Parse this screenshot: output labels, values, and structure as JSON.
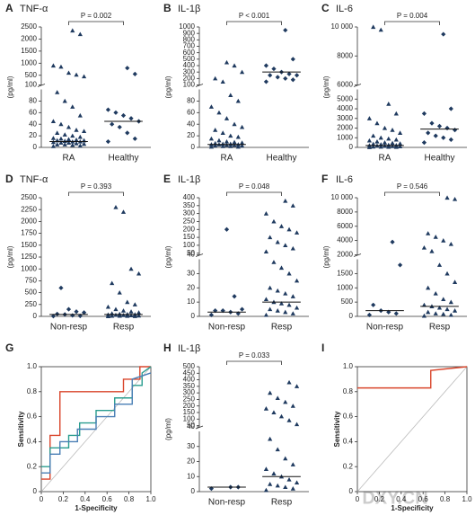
{
  "watermark": "DXY.CN",
  "chart_data": [
    {
      "type": "dotplot",
      "label": "A",
      "title": "TNF-α",
      "ylabel": "(pg/ml)",
      "annotation": "P = 0.002",
      "categories": [
        "RA",
        "Healthy"
      ],
      "markers": [
        "triangle",
        "diamond"
      ],
      "color": "#1f3a5f",
      "groups": [
        [
          2,
          3,
          4,
          5,
          5,
          6,
          7,
          8,
          8,
          9,
          10,
          10,
          11,
          12,
          12,
          13,
          14,
          15,
          16,
          18,
          20,
          22,
          25,
          28,
          30,
          35,
          40,
          45,
          55,
          70,
          80,
          95,
          450,
          520,
          600,
          850,
          900,
          2200,
          2350
        ],
        [
          10,
          15,
          25,
          35,
          40,
          45,
          50,
          55,
          60,
          65,
          550,
          800
        ]
      ],
      "medians": [
        10,
        45
      ],
      "ysegments": [
        {
          "ylim": [
            0,
            100
          ],
          "yticks": [
            0,
            20,
            40,
            60,
            80,
            100
          ]
        },
        {
          "ylim": [
            100,
            2500
          ],
          "yticks": [
            500,
            1000,
            1500,
            2000,
            2500
          ]
        }
      ]
    },
    {
      "type": "dotplot",
      "label": "B",
      "title": "IL-1β",
      "ylabel": "(pg/ml)",
      "annotation": "P < 0.001",
      "categories": [
        "RA",
        "Healthy"
      ],
      "markers": [
        "triangle",
        "diamond"
      ],
      "color": "#1f3a5f",
      "groups": [
        [
          1,
          1,
          2,
          2,
          3,
          3,
          4,
          4,
          5,
          5,
          5,
          6,
          6,
          7,
          8,
          9,
          10,
          12,
          15,
          18,
          20,
          25,
          30,
          35,
          40,
          50,
          60,
          70,
          80,
          90,
          150,
          200,
          300,
          400,
          450
        ],
        [
          150,
          180,
          200,
          220,
          250,
          250,
          270,
          300,
          350,
          400,
          500,
          950
        ]
      ],
      "medians": [
        5,
        300
      ],
      "ysegments": [
        {
          "ylim": [
            0,
            100
          ],
          "yticks": [
            0,
            20,
            40,
            60,
            80,
            100
          ]
        },
        {
          "ylim": [
            100,
            1000
          ],
          "yticks": [
            200,
            300,
            400,
            500,
            600,
            700,
            800,
            900,
            1000
          ]
        }
      ]
    },
    {
      "type": "dotplot",
      "label": "C",
      "title": "IL-6",
      "ylabel": "(pg/ml)",
      "annotation": "P = 0.004",
      "categories": [
        "RA",
        "Healthy"
      ],
      "markers": [
        "triangle",
        "diamond"
      ],
      "color": "#1f3a5f",
      "groups": [
        [
          20,
          40,
          50,
          60,
          80,
          100,
          120,
          150,
          180,
          200,
          220,
          250,
          300,
          350,
          400,
          450,
          500,
          600,
          700,
          800,
          900,
          1000,
          1200,
          1500,
          1800,
          2000,
          2500,
          3000,
          3500,
          4500,
          9800,
          10000
        ],
        [
          500,
          800,
          1000,
          1200,
          1500,
          1800,
          2000,
          2200,
          2500,
          3500,
          4000,
          9500
        ]
      ],
      "medians": [
        200,
        1900
      ],
      "ysegments": [
        {
          "ylim": [
            0,
            6000
          ],
          "yticks": [
            0,
            1000,
            2000,
            3000,
            4000,
            5000,
            6000
          ]
        },
        {
          "ylim": [
            6000,
            10000
          ],
          "yticks": [
            8000,
            {
              "value": 10000,
              "label": "10 000"
            }
          ]
        }
      ]
    },
    {
      "type": "dotplot",
      "label": "D",
      "title": "TNF-α",
      "ylabel": "(pg/ml)",
      "annotation": "P = 0.393",
      "categories": [
        "Non-resp",
        "Resp"
      ],
      "markers": [
        "diamond",
        "triangle"
      ],
      "color": "#1f3a5f",
      "groups": [
        [
          5,
          10,
          20,
          40,
          50,
          80,
          100,
          150,
          600
        ],
        [
          2,
          5,
          8,
          10,
          12,
          15,
          20,
          25,
          30,
          35,
          40,
          45,
          50,
          60,
          80,
          100,
          120,
          150,
          200,
          250,
          300,
          500,
          700,
          900,
          1000,
          2200,
          2300
        ]
      ],
      "medians": [
        40,
        40
      ],
      "ysegments": [
        {
          "ylim": [
            0,
            2500
          ],
          "yticks": [
            0,
            250,
            500,
            750,
            1000,
            1250,
            1500,
            1750,
            2000,
            2250,
            2500
          ]
        }
      ]
    },
    {
      "type": "dotplot",
      "label": "E",
      "title": "IL-1β",
      "ylabel": "(pg/ml)",
      "annotation": "P = 0.048",
      "categories": [
        "Non-resp",
        "Resp"
      ],
      "markers": [
        "diamond",
        "triangle"
      ],
      "color": "#1f3a5f",
      "groups": [
        [
          1,
          2,
          3,
          4,
          4,
          5,
          14,
          200
        ],
        [
          1,
          2,
          3,
          4,
          5,
          6,
          8,
          9,
          10,
          12,
          14,
          16,
          18,
          20,
          25,
          30,
          34,
          38,
          60,
          80,
          100,
          120,
          150,
          180,
          200,
          220,
          250,
          300,
          350,
          380
        ]
      ],
      "medians": [
        3,
        10
      ],
      "ysegments": [
        {
          "ylim": [
            0,
            40
          ],
          "yticks": [
            0,
            10,
            20,
            30,
            40
          ]
        },
        {
          "ylim": [
            40,
            400
          ],
          "yticks": [
            50,
            100,
            150,
            200,
            250,
            300,
            350,
            400
          ]
        }
      ]
    },
    {
      "type": "dotplot",
      "label": "F",
      "title": "IL-6",
      "ylabel": "(pg/ml)",
      "annotation": "P = 0.546",
      "categories": [
        "Non-resp",
        "Resp"
      ],
      "markers": [
        "diamond",
        "triangle"
      ],
      "color": "#1f3a5f",
      "groups": [
        [
          50,
          100,
          150,
          200,
          400,
          1800,
          3800
        ],
        [
          20,
          50,
          80,
          100,
          150,
          200,
          250,
          300,
          350,
          400,
          500,
          600,
          800,
          1000,
          1200,
          1500,
          1800,
          2500,
          3000,
          3500,
          4000,
          4500,
          5000,
          9800,
          10000
        ]
      ],
      "medians": [
        200,
        350
      ],
      "ysegments": [
        {
          "ylim": [
            0,
            2000
          ],
          "yticks": [
            0,
            500,
            1000,
            1500,
            2000
          ]
        },
        {
          "ylim": [
            2000,
            10000
          ],
          "yticks": [
            4000,
            6000,
            8000,
            {
              "value": 10000,
              "label": "10 000"
            }
          ]
        }
      ]
    },
    {
      "type": "roc",
      "label": "G",
      "xlabel": "1-Specificity",
      "ylabel": "Sensitivity",
      "xlim": [
        0,
        1
      ],
      "ylim": [
        0,
        1
      ],
      "xticks": [
        0,
        0.2,
        0.4,
        0.6,
        0.8,
        {
          "value": 1,
          "label": "1.0"
        }
      ],
      "yticks": [
        0,
        0.2,
        0.4,
        0.6,
        0.8,
        {
          "value": 1,
          "label": "1.0"
        }
      ],
      "series": [
        {
          "color": "#d9452b",
          "x": [
            0,
            0.08,
            0.08,
            0.17,
            0.17,
            0.75,
            0.75,
            0.9,
            0.9,
            1
          ],
          "y": [
            0.1,
            0.1,
            0.45,
            0.45,
            0.8,
            0.8,
            0.9,
            0.9,
            1,
            1
          ]
        },
        {
          "color": "#2a9d8f",
          "x": [
            0,
            0.08,
            0.08,
            0.25,
            0.25,
            0.35,
            0.35,
            0.5,
            0.5,
            0.67,
            0.67,
            0.83,
            0.83,
            0.92,
            0.92,
            1
          ],
          "y": [
            0.2,
            0.2,
            0.35,
            0.35,
            0.45,
            0.45,
            0.55,
            0.55,
            0.65,
            0.65,
            0.75,
            0.75,
            0.85,
            0.85,
            0.95,
            1
          ]
        },
        {
          "color": "#4a7fb5",
          "x": [
            0,
            0.08,
            0.08,
            0.17,
            0.17,
            0.33,
            0.33,
            0.5,
            0.5,
            0.67,
            0.67,
            0.83,
            0.83,
            1
          ],
          "y": [
            0.15,
            0.15,
            0.3,
            0.3,
            0.4,
            0.4,
            0.5,
            0.5,
            0.6,
            0.6,
            0.7,
            0.7,
            0.9,
            0.95
          ]
        }
      ]
    },
    {
      "type": "dotplot",
      "label": "H",
      "title": "IL-1β",
      "ylabel": "(pg/ml)",
      "annotation": "P = 0.033",
      "categories": [
        "Non-resp",
        "Resp"
      ],
      "markers": [
        "diamond",
        "triangle"
      ],
      "color": "#1f3a5f",
      "groups": [
        [
          2,
          3,
          3
        ],
        [
          1,
          2,
          3,
          4,
          5,
          6,
          8,
          10,
          12,
          15,
          18,
          22,
          28,
          35,
          60,
          90,
          120,
          150,
          180,
          200,
          230,
          260,
          300,
          350,
          380
        ]
      ],
      "medians": [
        3,
        10
      ],
      "ysegments": [
        {
          "ylim": [
            0,
            40
          ],
          "yticks": [
            0,
            10,
            20,
            30,
            40
          ]
        },
        {
          "ylim": [
            40,
            500
          ],
          "yticks": [
            50,
            100,
            150,
            200,
            250,
            300,
            350,
            400,
            450,
            500
          ]
        }
      ]
    },
    {
      "type": "roc",
      "label": "I",
      "xlabel": "1-Specificity",
      "ylabel": "Sensitivity",
      "xlim": [
        0,
        1
      ],
      "ylim": [
        0,
        1
      ],
      "xticks": [
        0,
        0.2,
        0.4,
        0.6,
        0.8,
        {
          "value": 1,
          "label": "1.0"
        }
      ],
      "yticks": [
        0,
        0.2,
        0.4,
        0.6,
        0.8,
        {
          "value": 1,
          "label": "1.0"
        }
      ],
      "series": [
        {
          "color": "#d9452b",
          "x": [
            0,
            0.67,
            0.67,
            1
          ],
          "y": [
            0.83,
            0.83,
            0.97,
            1
          ]
        }
      ]
    }
  ]
}
